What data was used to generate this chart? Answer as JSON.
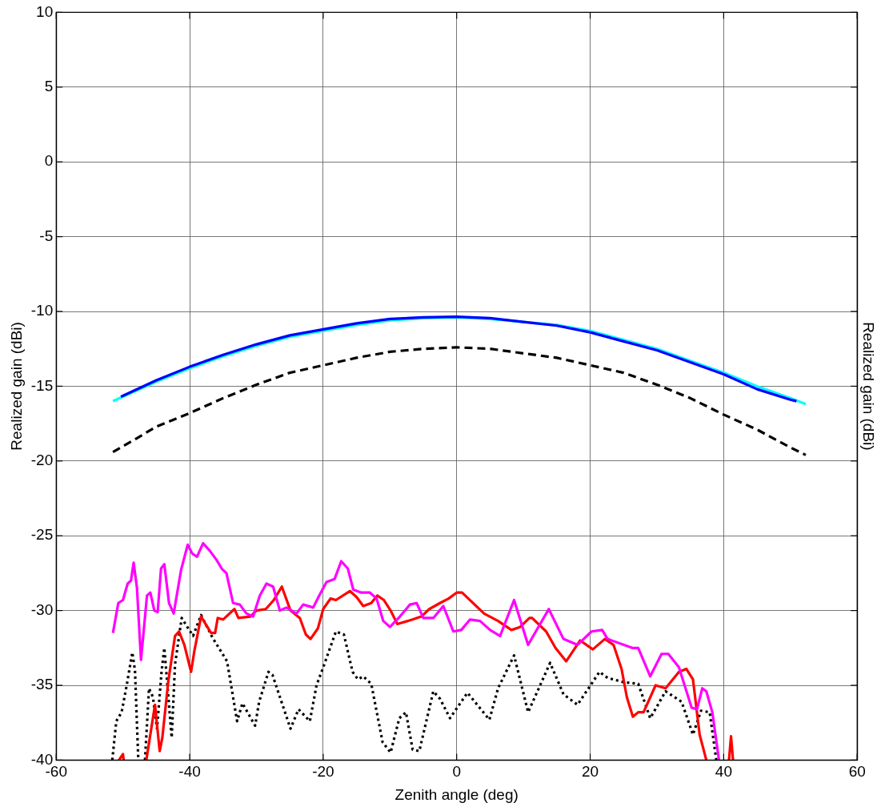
{
  "chart_data": {
    "type": "line",
    "xlabel": "Zenith angle (deg)",
    "ylabel": "Realized gain (dBi)",
    "y2label": "Realized gain (dBi)",
    "xlim": [
      -60,
      60
    ],
    "xticks": [
      -60,
      -40,
      -20,
      0,
      20,
      40,
      60
    ],
    "ylim": [
      -40,
      10
    ],
    "yticks": [
      -40,
      -35,
      -30,
      -25,
      -20,
      -15,
      -10,
      -5,
      0,
      5,
      10
    ],
    "grid": true,
    "legend": false,
    "marker": "none",
    "series": [
      {
        "color": "#0000ff",
        "line_style": "solid",
        "x": [
          -50.3,
          -45,
          -40,
          -35,
          -30,
          -25,
          -20,
          -15,
          -10,
          -5,
          0,
          5,
          10,
          15,
          20,
          25,
          30,
          35,
          40,
          45,
          50,
          50.9
        ],
        "values": [
          -15.7,
          -14.6,
          -13.7,
          -12.9,
          -12.2,
          -11.6,
          -11.2,
          -10.8,
          -10.5,
          -10.4,
          -10.35,
          -10.45,
          -10.7,
          -10.95,
          -11.4,
          -12,
          -12.6,
          -13.4,
          -14.2,
          -15.2,
          -15.9,
          -16.0
        ]
      },
      {
        "color": "#00ffff",
        "line_style": "solid",
        "x": [
          -51.5,
          -45,
          -40,
          -35,
          -30,
          -25,
          -20,
          -15,
          -10,
          -5,
          0,
          5,
          10,
          15,
          20,
          25,
          30,
          35,
          40,
          45,
          50,
          52.3
        ],
        "values": [
          -16.0,
          -14.7,
          -13.8,
          -13,
          -12.3,
          -11.7,
          -11.3,
          -10.9,
          -10.6,
          -10.45,
          -10.4,
          -10.5,
          -10.7,
          -10.9,
          -11.3,
          -11.9,
          -12.5,
          -13.3,
          -14.1,
          -15,
          -15.8,
          -16.2
        ]
      },
      {
        "color": "#000000",
        "line_style": "dashed",
        "x": [
          -51.5,
          -48,
          -45,
          -40,
          -35,
          -30,
          -25,
          -20,
          -15,
          -10,
          -5,
          0,
          5,
          10,
          15,
          20,
          25,
          30,
          35,
          40,
          45,
          50,
          52.3
        ],
        "values": [
          -19.4,
          -18.5,
          -17.7,
          -16.8,
          -15.8,
          -14.9,
          -14.1,
          -13.6,
          -13.1,
          -12.7,
          -12.5,
          -12.4,
          -12.5,
          -12.8,
          -13.1,
          -13.6,
          -14.1,
          -14.9,
          -15.8,
          -16.9,
          -17.9,
          -19.1,
          -19.6
        ]
      },
      {
        "color": "#ff00ff",
        "line_style": "solid",
        "x": [
          -51.5,
          -50.7,
          -50,
          -49.3,
          -48.8,
          -48.4,
          -47.9,
          -47.3,
          -46.4,
          -45.9,
          -45.3,
          -44.8,
          -44.3,
          -43.8,
          -43.1,
          -42.4,
          -41.3,
          -40.3,
          -39.6,
          -38.9,
          -38,
          -37,
          -36,
          -35.2,
          -34.5,
          -33.5,
          -32.5,
          -31.5,
          -30.5,
          -29.5,
          -28.5,
          -27.5,
          -26.5,
          -25.5,
          -24,
          -23,
          -21.5,
          -20.6,
          -19.5,
          -18.3,
          -17.3,
          -16.3,
          -15.5,
          -14.3,
          -13,
          -12,
          -11,
          -10,
          -8.5,
          -7,
          -6,
          -5,
          -3.5,
          -2,
          -0.5,
          0.7,
          2,
          3.5,
          5,
          6.5,
          8.6,
          10.7,
          13.8,
          16,
          18.1,
          20.2,
          21.8,
          22.6,
          26.3,
          27.2,
          29,
          30.7,
          31.7,
          33.3,
          35.2,
          36,
          36.8,
          37.4,
          38.3,
          39.3
        ],
        "values": [
          -31.5,
          -29.5,
          -29.3,
          -28.2,
          -28,
          -26.8,
          -28.5,
          -33.3,
          -29,
          -28.8,
          -30,
          -30.1,
          -27.2,
          -26.9,
          -29.5,
          -30.2,
          -27.3,
          -25.6,
          -26.2,
          -26.4,
          -25.5,
          -26,
          -26.6,
          -27.2,
          -27.5,
          -29.5,
          -29.6,
          -30.2,
          -30.4,
          -29,
          -28.2,
          -28.4,
          -30,
          -29.8,
          -30.2,
          -29.6,
          -29.8,
          -29,
          -28.1,
          -27.9,
          -26.7,
          -27.2,
          -28.6,
          -28.8,
          -28.8,
          -29.2,
          -30.7,
          -31.1,
          -30.4,
          -29.6,
          -29.5,
          -30.5,
          -30.5,
          -29.7,
          -31.4,
          -31.3,
          -30.6,
          -30.7,
          -31.3,
          -31.7,
          -29.3,
          -32.3,
          -29.9,
          -31.9,
          -32.3,
          -31.4,
          -31.3,
          -31.9,
          -32.5,
          -32.5,
          -34.4,
          -32.9,
          -32.9,
          -33.8,
          -36.5,
          -36.6,
          -35.2,
          -35.4,
          -36.8,
          -40
        ]
      },
      {
        "color": "#ff0000",
        "line_style": "solid",
        "x": [
          -50.6,
          -50,
          -49.9,
          -48,
          -46.5,
          -45.2,
          -44.5,
          -44.1,
          -43.2,
          -42.2,
          -41.6,
          -40.8,
          -39.8,
          -39.3,
          -38.3,
          -36.8,
          -36.2,
          -35.8,
          -35,
          -33.3,
          -32.7,
          -30.9,
          -30,
          -28.6,
          -27.4,
          -26.2,
          -24.9,
          -23.5,
          -22.6,
          -21.9,
          -20.8,
          -20,
          -18.9,
          -18.1,
          -16,
          -15,
          -14,
          -12.8,
          -11.9,
          -10.9,
          -9.9,
          -8.9,
          -6.6,
          -5.3,
          -4.1,
          -2.5,
          -1.2,
          0,
          0.8,
          4.1,
          6.2,
          8.2,
          9.5,
          10.9,
          11.3,
          13.4,
          14.8,
          16.4,
          18.5,
          20.4,
          22.2,
          23.5,
          24.7,
          25.5,
          26.4,
          27.2,
          28,
          29.8,
          31.3,
          33.3,
          34.4,
          35.4,
          36.4,
          37.4,
          39,
          40.8,
          41.1,
          41.4
        ],
        "values": [
          -40,
          -39.6,
          -40,
          null,
          -40,
          -36.3,
          -39.4,
          -38.5,
          -34.7,
          -31.7,
          -31.4,
          -32.3,
          -34.1,
          -32.7,
          -30.4,
          -31.5,
          -31.5,
          -30.5,
          -30.6,
          -29.9,
          -30.5,
          -30.4,
          -30,
          -29.9,
          -29.3,
          -28.4,
          -30,
          -30.5,
          -31.6,
          -31.9,
          -31.2,
          -29.9,
          -29.2,
          -29.3,
          -28.7,
          -29.1,
          -29.7,
          -29.5,
          -29,
          -29.3,
          -30,
          -30.9,
          -30.6,
          -30.4,
          -29.9,
          -29.5,
          -29.2,
          -28.8,
          -28.8,
          -30.2,
          -30.7,
          -31.3,
          -31.1,
          -30.5,
          -30.5,
          -31.4,
          -32.5,
          -33.4,
          -32,
          -32.6,
          -31.9,
          -32.3,
          -33.9,
          -35.8,
          -37.1,
          -36.8,
          -36.8,
          -35,
          -35.2,
          -34.1,
          -33.9,
          -34.6,
          -38.3,
          -40,
          null,
          -40,
          -38.4,
          -40
        ]
      },
      {
        "color": "#000000",
        "line_style": "dotted",
        "x": [
          -51.6,
          -51,
          -50.2,
          -49.4,
          -48.6,
          -48.2,
          -47.7,
          -47.2,
          -46.7,
          -46.1,
          -45.5,
          -44.9,
          -44.2,
          -43.8,
          -42.7,
          -42.2,
          -41.2,
          -39.5,
          -38.3,
          -36.6,
          -34.4,
          -32.9,
          -32.1,
          -30.2,
          -29.6,
          -28.2,
          -27.6,
          -24.9,
          -23.7,
          -22,
          -21,
          -20,
          -18.1,
          -16.9,
          -15.6,
          -14.8,
          -14,
          -12.8,
          -11.1,
          -9.9,
          -8.6,
          -7.6,
          -6.6,
          -5.6,
          -3.5,
          -2.5,
          -1,
          1.6,
          1.8,
          4.9,
          6.2,
          8.6,
          10.7,
          14,
          16,
          18.1,
          21.4,
          22.6,
          25.1,
          27.2,
          29,
          31.3,
          33.7,
          35.4,
          36.6,
          37.9,
          38.9
        ],
        "values": [
          -40,
          -37.4,
          -36.8,
          -34.9,
          -32.8,
          -34,
          -40,
          null,
          -40,
          -35.2,
          -35.8,
          -37.9,
          -34,
          -32.5,
          -38.5,
          -33.6,
          -30.5,
          -31.7,
          -30.3,
          -31.8,
          -33.4,
          -37.4,
          -36.2,
          -37.7,
          -36.1,
          -34.1,
          -34.3,
          -37.9,
          -36.6,
          -37.4,
          -35,
          -33.8,
          -31.4,
          -31.6,
          -34.1,
          -34.6,
          -34.4,
          -34.9,
          -38.8,
          -39.5,
          -37.2,
          -36.8,
          -39.3,
          -39.4,
          -35.4,
          -35.9,
          -37.2,
          -35.5,
          -35.6,
          -37.3,
          -35.2,
          -33,
          -36.8,
          -33.5,
          -35.6,
          -36.3,
          -34.1,
          -34.5,
          -34.8,
          -34.9,
          -37.2,
          -35.4,
          -36.1,
          -38.3,
          -36.7,
          -36.8,
          -40
        ]
      }
    ]
  }
}
